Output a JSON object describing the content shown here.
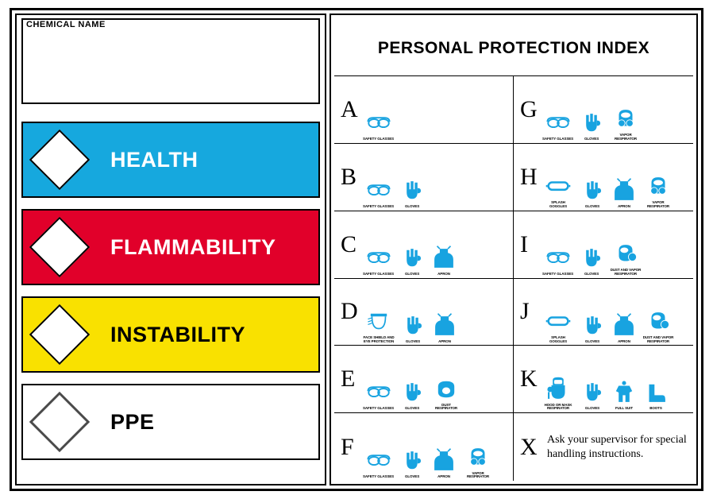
{
  "chemical_name_label": "CHEMICAL NAME",
  "hazard_bars": [
    {
      "label": "HEALTH",
      "bg": "#16a8de",
      "fg": "#ffffff",
      "diamond_border": "#000000"
    },
    {
      "label": "FLAMMABILITY",
      "bg": "#e1002a",
      "fg": "#ffffff",
      "diamond_border": "#000000"
    },
    {
      "label": "INSTABILITY",
      "bg": "#f9e100",
      "fg": "#000000",
      "diamond_border": "#000000"
    },
    {
      "label": "PPE",
      "bg": "#ffffff",
      "fg": "#000000",
      "diamond_border": "#4a4a4a"
    }
  ],
  "ppi": {
    "title": "PERSONAL PROTECTION INDEX",
    "icon_color": "#18a3e0",
    "ppe_defs": {
      "glasses": {
        "caption": "SAFETY GLASSES"
      },
      "gloves": {
        "caption": "GLOVES"
      },
      "apron": {
        "caption": "APRON"
      },
      "faceshield": {
        "caption": "FACE SHIELD AND EYE PROTECTION"
      },
      "dust_resp": {
        "caption": "DUST RESPIRATOR"
      },
      "vapor_resp": {
        "caption": "VAPOR RESPIRATOR"
      },
      "splash_goggles": {
        "caption": "SPLASH GOGGLES"
      },
      "dust_vapor_resp": {
        "caption": "DUST AND VAPOR RESPIRATOR"
      },
      "full_suit": {
        "caption": "FULL SUIT"
      },
      "boots": {
        "caption": "BOOTS"
      },
      "hood_mask": {
        "caption": "HOOD OR MASK RESPIRATOR"
      }
    },
    "rows": [
      {
        "letter": "A",
        "ppe": [
          "glasses"
        ]
      },
      {
        "letter": "G",
        "ppe": [
          "glasses",
          "gloves",
          "vapor_resp"
        ]
      },
      {
        "letter": "B",
        "ppe": [
          "glasses",
          "gloves"
        ]
      },
      {
        "letter": "H",
        "ppe": [
          "splash_goggles",
          "gloves",
          "apron",
          "vapor_resp"
        ]
      },
      {
        "letter": "C",
        "ppe": [
          "glasses",
          "gloves",
          "apron"
        ]
      },
      {
        "letter": "I",
        "ppe": [
          "glasses",
          "gloves",
          "dust_vapor_resp"
        ]
      },
      {
        "letter": "D",
        "ppe": [
          "faceshield",
          "gloves",
          "apron"
        ]
      },
      {
        "letter": "J",
        "ppe": [
          "splash_goggles",
          "gloves",
          "apron",
          "dust_vapor_resp"
        ]
      },
      {
        "letter": "E",
        "ppe": [
          "glasses",
          "gloves",
          "dust_resp"
        ]
      },
      {
        "letter": "K",
        "ppe": [
          "hood_mask",
          "gloves",
          "full_suit",
          "boots"
        ]
      },
      {
        "letter": "F",
        "ppe": [
          "glasses",
          "gloves",
          "apron",
          "vapor_resp"
        ]
      },
      {
        "letter": "X",
        "text": "Ask your supervisor for special handling instructions."
      }
    ]
  }
}
